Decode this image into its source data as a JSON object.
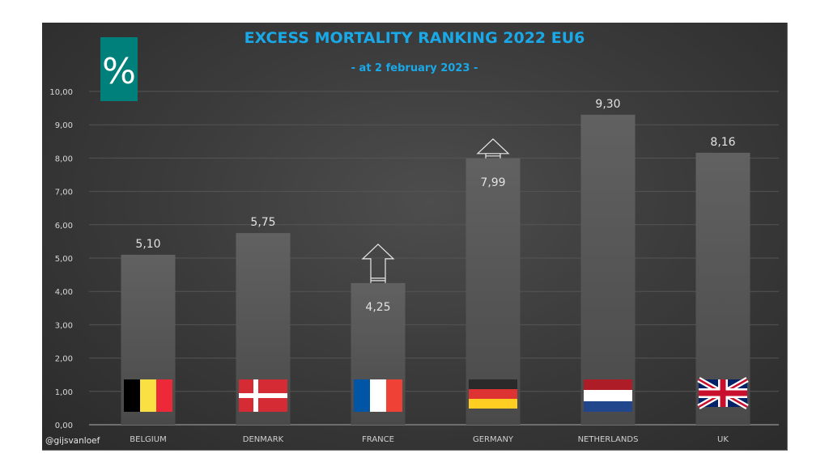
{
  "chart_data": {
    "type": "bar",
    "title": "EXCESS MORTALITY RANKING 2022 EU6",
    "subtitle": "- at 2 february 2023 -",
    "unit_badge": "%",
    "credit": "@gijsvanloef",
    "xlabel": "",
    "ylabel": "",
    "ylim": [
      0,
      10
    ],
    "yticks": [
      "0,00",
      "1,00",
      "2,00",
      "3,00",
      "4,00",
      "5,00",
      "6,00",
      "7,00",
      "8,00",
      "9,00",
      "10,00"
    ],
    "ytick_values": [
      0,
      1,
      2,
      3,
      4,
      5,
      6,
      7,
      8,
      9,
      10
    ],
    "grid": true,
    "legend": "none",
    "categories": [
      "BELGIUM",
      "DENMARK",
      "FRANCE",
      "GERMANY",
      "NETHERLANDS",
      "UK"
    ],
    "values": [
      5.1,
      5.75,
      4.25,
      7.99,
      9.3,
      8.16
    ],
    "value_labels": [
      "5,10",
      "5,75",
      "4,25",
      "7,99",
      "9,30",
      "8,16"
    ],
    "value_label_position": [
      "above",
      "above",
      "inside",
      "inside",
      "above",
      "above"
    ],
    "annotations": [
      {
        "type": "up-arrow",
        "category": "FRANCE",
        "meaning": "value expected to rise"
      },
      {
        "type": "up-arrow",
        "category": "GERMANY",
        "meaning": "value expected to rise"
      }
    ],
    "flags": [
      "belgium-flag",
      "denmark-flag",
      "france-flag",
      "germany-flag",
      "netherlands-flag",
      "uk-flag"
    ],
    "colors": {
      "title": "#19a9e8",
      "bar": "#5e5e5e",
      "badge": "#00807a",
      "grid": "#555555"
    }
  }
}
